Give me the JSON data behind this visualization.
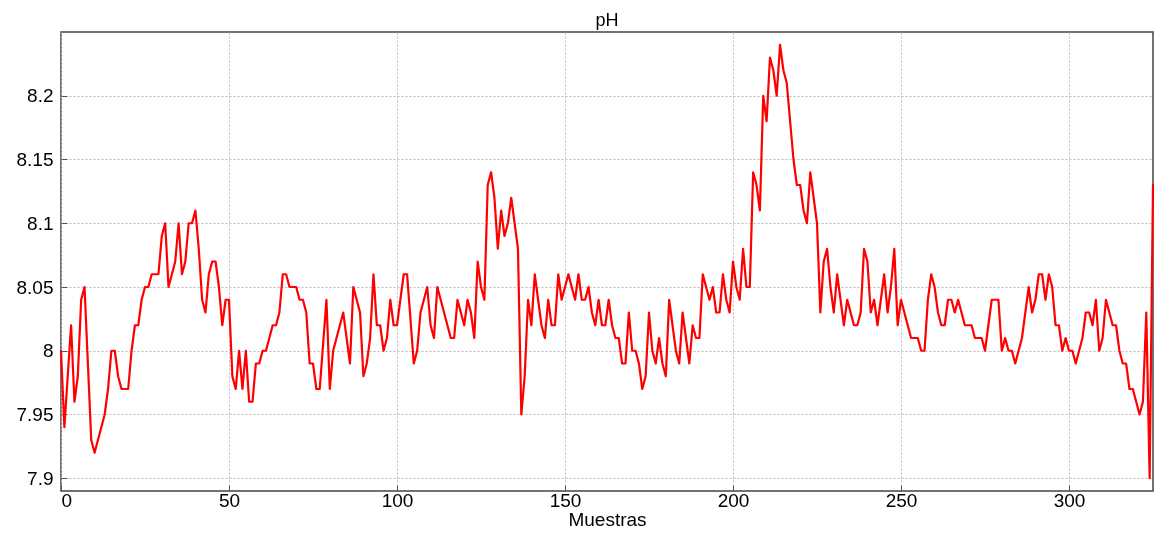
{
  "chart_data": {
    "type": "line",
    "title": "pH",
    "xlabel": "Muestras",
    "xlim": [
      0,
      325
    ],
    "xticks": [
      0,
      50,
      100,
      150,
      200,
      250,
      300
    ],
    "ylim": [
      7.89,
      8.25
    ],
    "yticks": [
      7.9,
      7.95,
      8,
      8.05,
      8.1,
      8.15,
      8.2
    ],
    "grid": true,
    "line_style": "solid",
    "series": [
      {
        "color": "#ff0000",
        "x": [
          0,
          1,
          3,
          4,
          5,
          6,
          7,
          9,
          10,
          13,
          14,
          15,
          16,
          17,
          18,
          20,
          21,
          22,
          23,
          24,
          25,
          26,
          27,
          29,
          30,
          31,
          32,
          34,
          35,
          36,
          37,
          38,
          39,
          40,
          41,
          42,
          43,
          44,
          45,
          46,
          47,
          48,
          49,
          50,
          51,
          52,
          53,
          54,
          55,
          56,
          57,
          58,
          59,
          60,
          61,
          62,
          63,
          64,
          65,
          66,
          67,
          68,
          70,
          71,
          72,
          73,
          74,
          75,
          76,
          77,
          79,
          80,
          81,
          84,
          86,
          87,
          89,
          90,
          91,
          92,
          93,
          94,
          95,
          96,
          97,
          98,
          99,
          100,
          102,
          103,
          105,
          106,
          107,
          109,
          110,
          111,
          112,
          116,
          117,
          118,
          120,
          121,
          122,
          123,
          124,
          125,
          126,
          127,
          128,
          129,
          130,
          131,
          132,
          133,
          134,
          135,
          136,
          137,
          138,
          139,
          140,
          141,
          142,
          143,
          144,
          145,
          146,
          147,
          148,
          149,
          150,
          151,
          152,
          153,
          154,
          155,
          156,
          157,
          158,
          159,
          160,
          161,
          162,
          163,
          164,
          165,
          166,
          167,
          168,
          169,
          170,
          171,
          172,
          173,
          174,
          175,
          176,
          177,
          178,
          179,
          180,
          181,
          182,
          183,
          184,
          185,
          186,
          187,
          188,
          189,
          190,
          191,
          192,
          193,
          194,
          195,
          196,
          197,
          198,
          199,
          200,
          201,
          202,
          203,
          204,
          205,
          206,
          207,
          208,
          209,
          210,
          211,
          212,
          213,
          214,
          215,
          216,
          218,
          219,
          220,
          221,
          222,
          223,
          224,
          225,
          226,
          227,
          228,
          229,
          230,
          231,
          232,
          233,
          234,
          235,
          236,
          237,
          238,
          239,
          240,
          241,
          242,
          243,
          244,
          245,
          246,
          247,
          248,
          249,
          250,
          251,
          252,
          253,
          255,
          256,
          257,
          258,
          259,
          260,
          261,
          262,
          263,
          264,
          265,
          266,
          267,
          268,
          269,
          271,
          272,
          274,
          275,
          276,
          277,
          279,
          280,
          281,
          282,
          283,
          284,
          285,
          286,
          287,
          288,
          289,
          290,
          291,
          292,
          293,
          294,
          295,
          296,
          297,
          298,
          299,
          300,
          301,
          302,
          303,
          304,
          305,
          306,
          307,
          308,
          309,
          310,
          311,
          313,
          314,
          315,
          316,
          317,
          318,
          319,
          321,
          322,
          323,
          324,
          325
        ],
        "values": [
          8.0,
          7.94,
          8.02,
          7.96,
          7.98,
          8.04,
          8.05,
          7.93,
          7.92,
          7.95,
          7.97,
          8.0,
          8.0,
          7.98,
          7.97,
          7.97,
          8.0,
          8.02,
          8.02,
          8.04,
          8.05,
          8.05,
          8.06,
          8.06,
          8.09,
          8.1,
          8.05,
          8.07,
          8.1,
          8.06,
          8.07,
          8.1,
          8.1,
          8.11,
          8.08,
          8.04,
          8.03,
          8.06,
          8.07,
          8.07,
          8.05,
          8.02,
          8.04,
          8.04,
          7.98,
          7.97,
          8.0,
          7.97,
          8.0,
          7.96,
          7.96,
          7.99,
          7.99,
          8.0,
          8.0,
          8.01,
          8.02,
          8.02,
          8.03,
          8.06,
          8.06,
          8.05,
          8.05,
          8.04,
          8.04,
          8.03,
          7.99,
          7.99,
          7.97,
          7.97,
          8.04,
          7.97,
          8.0,
          8.03,
          7.99,
          8.05,
          8.03,
          7.98,
          7.99,
          8.01,
          8.06,
          8.02,
          8.02,
          8.0,
          8.01,
          8.04,
          8.02,
          8.02,
          8.06,
          8.06,
          7.99,
          8.0,
          8.03,
          8.05,
          8.02,
          8.01,
          8.05,
          8.01,
          8.01,
          8.04,
          8.02,
          8.04,
          8.03,
          8.01,
          8.07,
          8.05,
          8.04,
          8.13,
          8.14,
          8.12,
          8.08,
          8.11,
          8.09,
          8.1,
          8.12,
          8.1,
          8.08,
          7.95,
          7.98,
          8.04,
          8.02,
          8.06,
          8.04,
          8.02,
          8.01,
          8.04,
          8.02,
          8.02,
          8.06,
          8.04,
          8.05,
          8.06,
          8.05,
          8.04,
          8.06,
          8.04,
          8.04,
          8.05,
          8.03,
          8.02,
          8.04,
          8.02,
          8.02,
          8.04,
          8.02,
          8.01,
          8.01,
          7.99,
          7.99,
          8.03,
          8.0,
          8.0,
          7.99,
          7.97,
          7.98,
          8.03,
          8.0,
          7.99,
          8.01,
          7.99,
          7.98,
          8.04,
          8.02,
          8.0,
          7.99,
          8.03,
          8.01,
          7.99,
          8.02,
          8.01,
          8.01,
          8.06,
          8.05,
          8.04,
          8.05,
          8.03,
          8.03,
          8.06,
          8.04,
          8.03,
          8.07,
          8.05,
          8.04,
          8.08,
          8.05,
          8.05,
          8.14,
          8.13,
          8.11,
          8.2,
          8.18,
          8.23,
          8.22,
          8.2,
          8.24,
          8.22,
          8.21,
          8.15,
          8.13,
          8.13,
          8.11,
          8.1,
          8.14,
          8.12,
          8.1,
          8.03,
          8.07,
          8.08,
          8.05,
          8.03,
          8.06,
          8.04,
          8.02,
          8.04,
          8.03,
          8.02,
          8.02,
          8.03,
          8.08,
          8.07,
          8.03,
          8.04,
          8.02,
          8.04,
          8.06,
          8.03,
          8.05,
          8.08,
          8.02,
          8.04,
          8.03,
          8.02,
          8.01,
          8.01,
          8.0,
          8.0,
          8.04,
          8.06,
          8.05,
          8.03,
          8.02,
          8.02,
          8.04,
          8.04,
          8.03,
          8.04,
          8.03,
          8.02,
          8.02,
          8.01,
          8.01,
          8.0,
          8.02,
          8.04,
          8.04,
          8.0,
          8.01,
          8.0,
          8.0,
          7.99,
          8.0,
          8.01,
          8.03,
          8.05,
          8.03,
          8.04,
          8.06,
          8.06,
          8.04,
          8.06,
          8.05,
          8.02,
          8.02,
          8.0,
          8.01,
          8.0,
          8.0,
          7.99,
          8.0,
          8.01,
          8.03,
          8.03,
          8.02,
          8.04,
          8.0,
          8.01,
          8.04,
          8.02,
          8.02,
          8.0,
          7.99,
          7.99,
          7.97,
          7.97,
          7.95,
          7.96,
          8.03,
          7.9,
          8.13
        ]
      }
    ]
  }
}
